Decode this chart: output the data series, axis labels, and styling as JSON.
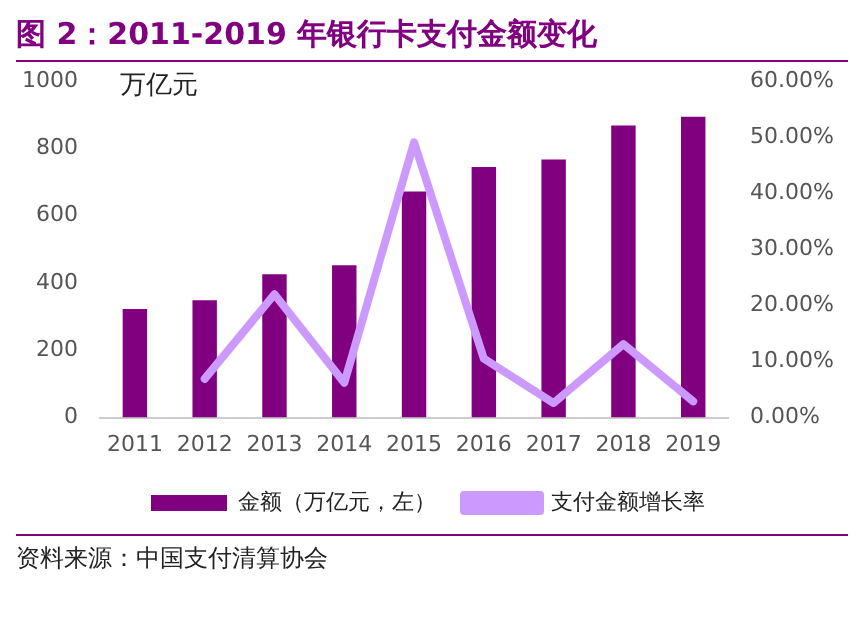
{
  "chart_data": {
    "type": "bar",
    "title": "图 2：2011-2019 年银行卡支付金额变化",
    "ylabel": "万亿元",
    "categories": [
      "2011",
      "2012",
      "2013",
      "2014",
      "2015",
      "2016",
      "2017",
      "2018",
      "2019"
    ],
    "series": [
      {
        "name": "金额（万亿元，左）",
        "color": "#800080",
        "values": [
          323,
          349,
          426,
          453,
          672,
          745,
          767,
          868,
          894
        ]
      },
      {
        "name": "支付金额增长率",
        "type": "line",
        "axis": "y2",
        "color": "#cc99ff",
        "values": [
          null,
          6.9,
          22.0,
          6.2,
          49.1,
          10.5,
          2.6,
          13.1,
          2.9
        ]
      }
    ],
    "ylim": [
      0,
      1000
    ],
    "yticks": [
      0,
      200,
      400,
      600,
      800,
      1000
    ],
    "y2lim": [
      0,
      60
    ],
    "y2ticks": [
      {
        "value": 0,
        "label": "0.00%"
      },
      {
        "value": 10,
        "label": "10.00%"
      },
      {
        "value": 20,
        "label": "20.00%"
      },
      {
        "value": 30,
        "label": "30.00%"
      },
      {
        "value": 40,
        "label": "40.00%"
      },
      {
        "value": 50,
        "label": "50.00%"
      },
      {
        "value": 60,
        "label": "60.00%"
      }
    ],
    "grid": false,
    "legend": "bottom",
    "marker": "none",
    "annotations": [
      "资料来源：中国支付清算协会"
    ]
  }
}
